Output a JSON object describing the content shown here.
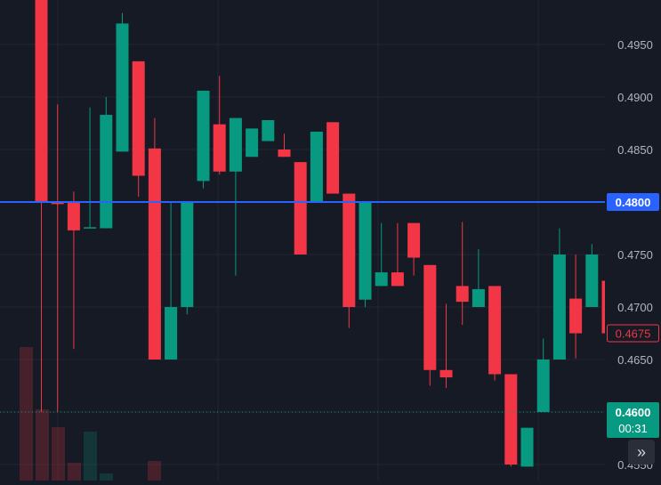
{
  "chart_data": {
    "type": "candlestick",
    "ylim": [
      0.4545,
      0.499
    ],
    "y_ticks": [
      "0.4950",
      "0.4900",
      "0.4850",
      "0.4750",
      "0.4700",
      "0.4650",
      "0.4550"
    ],
    "horizontal_line": {
      "value": 0.48,
      "label": "0.4800",
      "color": "#2962ff"
    },
    "last_price": {
      "value": 0.4675,
      "label": "0.4675",
      "color": "#f23645"
    },
    "current_price": {
      "value": 0.46,
      "label": "0.4600",
      "countdown": "00:31",
      "color": "#089981"
    },
    "colors": {
      "up": "#089981",
      "down": "#f23645",
      "background": "#161a25",
      "grid": "#232632",
      "axis_text": "#b2b5be"
    },
    "candles": [
      {
        "o": 0.5,
        "h": 0.5,
        "l": 0.46,
        "c": 0.48
      },
      {
        "o": 0.48,
        "h": 0.4893,
        "l": 0.46,
        "c": 0.4798
      },
      {
        "o": 0.48,
        "h": 0.481,
        "l": 0.466,
        "c": 0.4773
      },
      {
        "o": 0.4775,
        "h": 0.489,
        "l": 0.4775,
        "c": 0.4776
      },
      {
        "o": 0.4775,
        "h": 0.49,
        "l": 0.4775,
        "c": 0.4883
      },
      {
        "o": 0.4848,
        "h": 0.498,
        "l": 0.4848,
        "c": 0.497
      },
      {
        "o": 0.4934,
        "h": 0.4934,
        "l": 0.4805,
        "c": 0.4825
      },
      {
        "o": 0.4851,
        "h": 0.488,
        "l": 0.465,
        "c": 0.465
      },
      {
        "o": 0.465,
        "h": 0.48,
        "l": 0.465,
        "c": 0.47
      },
      {
        "o": 0.47,
        "h": 0.48,
        "l": 0.4693,
        "c": 0.48
      },
      {
        "o": 0.482,
        "h": 0.4906,
        "l": 0.4813,
        "c": 0.4906
      },
      {
        "o": 0.4874,
        "h": 0.492,
        "l": 0.4826,
        "c": 0.4829
      },
      {
        "o": 0.4829,
        "h": 0.488,
        "l": 0.473,
        "c": 0.488
      },
      {
        "o": 0.4843,
        "h": 0.487,
        "l": 0.4843,
        "c": 0.487
      },
      {
        "o": 0.4858,
        "h": 0.4878,
        "l": 0.4858,
        "c": 0.4878
      },
      {
        "o": 0.485,
        "h": 0.4865,
        "l": 0.4843,
        "c": 0.4843
      },
      {
        "o": 0.4838,
        "h": 0.4838,
        "l": 0.475,
        "c": 0.475
      },
      {
        "o": 0.48,
        "h": 0.4867,
        "l": 0.48,
        "c": 0.4867
      },
      {
        "o": 0.4876,
        "h": 0.4876,
        "l": 0.4808,
        "c": 0.4808
      },
      {
        "o": 0.4808,
        "h": 0.4808,
        "l": 0.468,
        "c": 0.47
      },
      {
        "o": 0.4707,
        "h": 0.48,
        "l": 0.47,
        "c": 0.48
      },
      {
        "o": 0.472,
        "h": 0.478,
        "l": 0.472,
        "c": 0.4733
      },
      {
        "o": 0.4733,
        "h": 0.478,
        "l": 0.472,
        "c": 0.472
      },
      {
        "o": 0.478,
        "h": 0.478,
        "l": 0.473,
        "c": 0.4747
      },
      {
        "o": 0.474,
        "h": 0.474,
        "l": 0.4625,
        "c": 0.464
      },
      {
        "o": 0.464,
        "h": 0.4703,
        "l": 0.4623,
        "c": 0.4633
      },
      {
        "o": 0.472,
        "h": 0.4781,
        "l": 0.4683,
        "c": 0.4705
      },
      {
        "o": 0.47,
        "h": 0.4755,
        "l": 0.47,
        "c": 0.4717
      },
      {
        "o": 0.472,
        "h": 0.472,
        "l": 0.463,
        "c": 0.4636
      },
      {
        "o": 0.4636,
        "h": 0.4636,
        "l": 0.4548,
        "c": 0.455
      },
      {
        "o": 0.4548,
        "h": 0.4585,
        "l": 0.4548,
        "c": 0.4585
      },
      {
        "o": 0.46,
        "h": 0.467,
        "l": 0.46,
        "c": 0.465
      },
      {
        "o": 0.465,
        "h": 0.4775,
        "l": 0.465,
        "c": 0.475
      },
      {
        "o": 0.4708,
        "h": 0.475,
        "l": 0.4651,
        "c": 0.4675
      },
      {
        "o": 0.47,
        "h": 0.476,
        "l": 0.47,
        "c": 0.475
      },
      {
        "o": 0.4725,
        "h": 0.4725,
        "l": 0.4675,
        "c": 0.4675
      }
    ]
  },
  "nav": {
    "scroll_icon": "double-chevron-right-icon",
    "glyph": "»"
  }
}
